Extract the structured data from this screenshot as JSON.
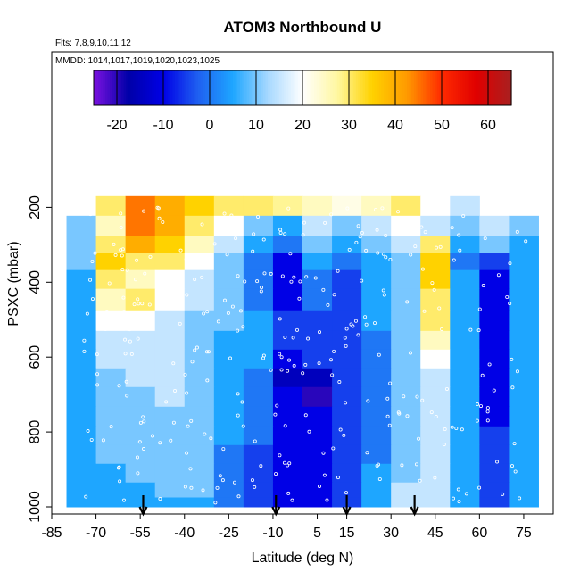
{
  "chart_data": {
    "type": "heatmap",
    "title": "ATOM3 Northbound U",
    "flights_note": "Flts: 7,8,9,10,11,12",
    "dates_note": "MMDD: 1014,1017,1019,1020,1023,1025",
    "xlabel": "Latitude (deg N)",
    "ylabel": "PSXC (mbar)",
    "xlim": [
      -85,
      85
    ],
    "ylim": [
      1000,
      0
    ],
    "x_ticks": [
      -85,
      -70,
      -55,
      -40,
      -25,
      -10,
      5,
      15,
      30,
      45,
      60,
      75
    ],
    "y_ticks": [
      200,
      400,
      600,
      800,
      1000
    ],
    "colorbar": {
      "range": [
        -25,
        65
      ],
      "ticks": [
        -20,
        -10,
        0,
        10,
        20,
        30,
        40,
        50,
        60
      ],
      "colors": [
        "#7b12e0",
        "#0000a8",
        "#0000e6",
        "#1f60f0",
        "#1ea6ff",
        "#a6d8ff",
        "#ffffff",
        "#fff7a0",
        "#ffd200",
        "#ff9a00",
        "#ff2a00",
        "#e00000",
        "#a82020"
      ]
    },
    "arrow_latitudes": [
      -54,
      -9,
      15,
      38
    ],
    "pressure_levels": [
      190,
      255,
      300,
      345,
      390,
      445,
      505,
      555,
      605,
      655,
      705,
      760,
      810,
      860,
      910,
      960,
      990
    ],
    "latitudes": [
      -75,
      -65,
      -55,
      -45,
      -35,
      -25,
      -15,
      -5,
      5,
      15,
      25,
      35,
      45,
      55,
      65,
      75
    ],
    "u_values": [
      [
        null,
        30,
        45,
        40,
        35,
        30,
        30,
        28,
        25,
        22,
        25,
        30,
        20,
        15,
        null,
        null
      ],
      [
        10,
        25,
        45,
        40,
        30,
        20,
        10,
        5,
        15,
        10,
        15,
        20,
        15,
        10,
        15,
        10
      ],
      [
        10,
        30,
        40,
        35,
        25,
        15,
        5,
        0,
        10,
        5,
        10,
        15,
        30,
        5,
        10,
        5
      ],
      [
        10,
        35,
        30,
        30,
        20,
        10,
        0,
        -10,
        5,
        0,
        5,
        10,
        35,
        0,
        -5,
        5
      ],
      [
        5,
        30,
        25,
        20,
        15,
        10,
        0,
        -10,
        0,
        -5,
        5,
        10,
        35,
        5,
        -10,
        5
      ],
      [
        5,
        25,
        30,
        20,
        15,
        10,
        0,
        -10,
        0,
        -5,
        5,
        10,
        30,
        5,
        -10,
        5
      ],
      [
        5,
        20,
        20,
        15,
        10,
        10,
        5,
        -5,
        -5,
        -5,
        5,
        10,
        30,
        5,
        -10,
        5
      ],
      [
        5,
        15,
        15,
        15,
        10,
        5,
        5,
        -5,
        -5,
        -5,
        0,
        10,
        25,
        5,
        -10,
        5
      ],
      [
        5,
        15,
        15,
        15,
        10,
        5,
        5,
        -10,
        -5,
        -5,
        0,
        10,
        20,
        5,
        -10,
        5
      ],
      [
        5,
        10,
        15,
        15,
        10,
        5,
        0,
        -15,
        -15,
        -5,
        0,
        10,
        15,
        5,
        -10,
        5
      ],
      [
        5,
        10,
        10,
        15,
        10,
        5,
        0,
        -10,
        -20,
        -5,
        0,
        10,
        15,
        5,
        -10,
        5
      ],
      [
        5,
        10,
        10,
        10,
        10,
        5,
        0,
        -10,
        -10,
        -5,
        0,
        10,
        15,
        5,
        -10,
        5
      ],
      [
        5,
        10,
        10,
        10,
        10,
        5,
        0,
        -10,
        -10,
        -5,
        0,
        10,
        15,
        5,
        -5,
        5
      ],
      [
        5,
        10,
        10,
        10,
        10,
        0,
        -5,
        -10,
        -10,
        -5,
        0,
        10,
        15,
        5,
        -5,
        5
      ],
      [
        5,
        5,
        10,
        10,
        10,
        0,
        -5,
        -10,
        -10,
        -5,
        5,
        10,
        15,
        5,
        -5,
        5
      ],
      [
        5,
        5,
        5,
        10,
        10,
        0,
        -5,
        -10,
        -10,
        -5,
        5,
        15,
        15,
        5,
        -5,
        5
      ],
      [
        5,
        5,
        5,
        5,
        5,
        0,
        -5,
        -10,
        -10,
        -5,
        5,
        15,
        15,
        5,
        -5,
        5
      ]
    ]
  }
}
